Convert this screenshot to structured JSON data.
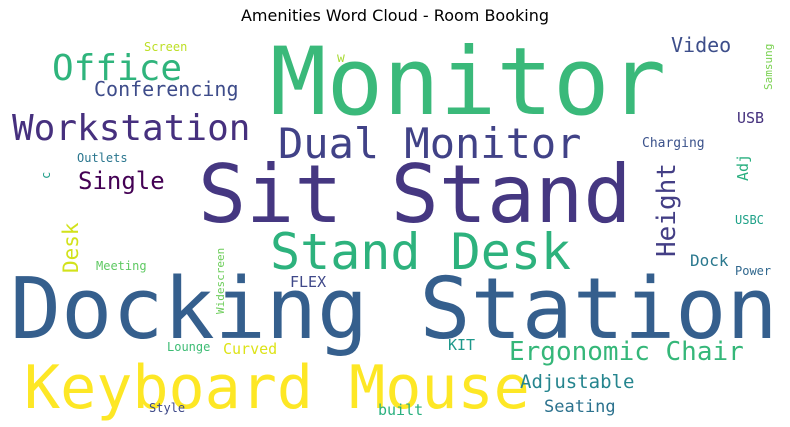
{
  "title": "Amenities Word Cloud - Room Booking",
  "words": [
    {
      "text": "Monitor",
      "color": "#3ab97a"
    },
    {
      "text": "Sit Stand",
      "color": "#453781"
    },
    {
      "text": "Docking Station",
      "color": "#355f8d"
    },
    {
      "text": "Keyboard Mouse",
      "color": "#fde725"
    },
    {
      "text": "Stand Desk",
      "color": "#2db27d"
    },
    {
      "text": "Dual Monitor",
      "color": "#414287"
    },
    {
      "text": "Workstation",
      "color": "#46307e"
    },
    {
      "text": "Office",
      "color": "#2fb47c"
    },
    {
      "text": "Ergonomic Chair",
      "color": "#35b779"
    },
    {
      "text": "Conferencing",
      "color": "#3e4c8a"
    },
    {
      "text": "Single",
      "color": "#440154"
    },
    {
      "text": "Height",
      "color": "#433e85"
    },
    {
      "text": "Video",
      "color": "#3d4e8a"
    },
    {
      "text": "Adjustable",
      "color": "#25858e"
    },
    {
      "text": "Seating",
      "color": "#2c728e"
    },
    {
      "text": "Desk",
      "color": "#d2e21b"
    },
    {
      "text": "Dock",
      "color": "#2a788e"
    },
    {
      "text": "Curved",
      "color": "#dde318"
    },
    {
      "text": "KIT",
      "color": "#1f988b"
    },
    {
      "text": "FLEX",
      "color": "#3f4889"
    },
    {
      "text": "built",
      "color": "#2ab07f"
    },
    {
      "text": "USB",
      "color": "#46327e"
    },
    {
      "text": "Adj",
      "color": "#29af7f"
    },
    {
      "text": "Charging",
      "color": "#3b528b"
    },
    {
      "text": "Samsung",
      "color": "#7ad151"
    },
    {
      "text": "Widescreen",
      "color": "#6ccd5a"
    },
    {
      "text": "Screen",
      "color": "#bddf26"
    },
    {
      "text": "Outlets",
      "color": "#2a768e"
    },
    {
      "text": "Meeting",
      "color": "#5ec962"
    },
    {
      "text": "Power",
      "color": "#31688e"
    },
    {
      "text": "USBC",
      "color": "#1fa188"
    },
    {
      "text": "Lounge",
      "color": "#3dbc74"
    },
    {
      "text": "Style",
      "color": "#3e4989"
    },
    {
      "text": "w",
      "color": "#a8db34"
    },
    {
      "text": "c",
      "color": "#1f9e89"
    }
  ]
}
